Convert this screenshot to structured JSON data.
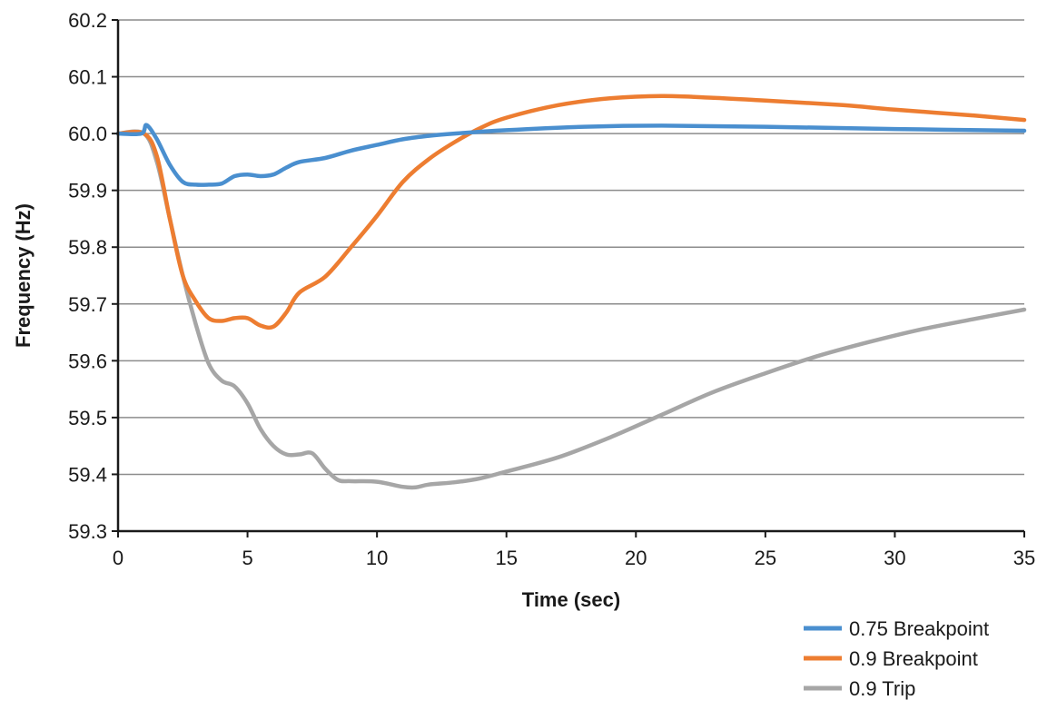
{
  "chart_data": {
    "type": "line",
    "xlabel": "Time (sec)",
    "ylabel": "Frequency (Hz)",
    "xlim": [
      0,
      35
    ],
    "ylim": [
      59.3,
      60.2
    ],
    "x_ticks": [
      "0",
      "5",
      "10",
      "15",
      "20",
      "25",
      "30",
      "35"
    ],
    "y_ticks": [
      "59.3",
      "59.4",
      "59.5",
      "59.6",
      "59.7",
      "59.8",
      "59.9",
      "60.0",
      "60.1",
      "60.2"
    ],
    "grid": "horizontal",
    "legend_position": "bottom-right",
    "series": [
      {
        "name": "0.75 Breakpoint",
        "color": "#4a8fcf",
        "points": [
          [
            0,
            60.0
          ],
          [
            0.9,
            60.0
          ],
          [
            1.1,
            60.015
          ],
          [
            1.5,
            59.99
          ],
          [
            2.0,
            59.945
          ],
          [
            2.5,
            59.915
          ],
          [
            3.0,
            59.91
          ],
          [
            3.5,
            59.91
          ],
          [
            4.0,
            59.912
          ],
          [
            4.5,
            59.925
          ],
          [
            5.0,
            59.928
          ],
          [
            5.5,
            59.925
          ],
          [
            6.0,
            59.928
          ],
          [
            6.5,
            59.94
          ],
          [
            7.0,
            59.95
          ],
          [
            8.0,
            59.957
          ],
          [
            9.0,
            59.97
          ],
          [
            10.0,
            59.98
          ],
          [
            11.0,
            59.99
          ],
          [
            12.0,
            59.996
          ],
          [
            13.0,
            60.0
          ],
          [
            15.0,
            60.006
          ],
          [
            18.0,
            60.012
          ],
          [
            21.0,
            60.014
          ],
          [
            25.0,
            60.012
          ],
          [
            30.0,
            60.008
          ],
          [
            35.0,
            60.005
          ]
        ]
      },
      {
        "name": "0.9 Breakpoint",
        "color": "#ed7d31",
        "points": [
          [
            0,
            60.0
          ],
          [
            1.0,
            60.0
          ],
          [
            1.5,
            59.96
          ],
          [
            2.0,
            59.85
          ],
          [
            2.5,
            59.75
          ],
          [
            3.0,
            59.705
          ],
          [
            3.5,
            59.675
          ],
          [
            4.0,
            59.67
          ],
          [
            4.5,
            59.675
          ],
          [
            5.0,
            59.675
          ],
          [
            5.5,
            59.662
          ],
          [
            6.0,
            59.66
          ],
          [
            6.5,
            59.685
          ],
          [
            7.0,
            59.72
          ],
          [
            8.0,
            59.748
          ],
          [
            9.0,
            59.8
          ],
          [
            10.0,
            59.855
          ],
          [
            11.0,
            59.915
          ],
          [
            12.0,
            59.955
          ],
          [
            13.0,
            59.985
          ],
          [
            14.0,
            60.01
          ],
          [
            15.0,
            60.028
          ],
          [
            17.0,
            60.05
          ],
          [
            19.0,
            60.062
          ],
          [
            21.0,
            60.066
          ],
          [
            23.0,
            60.063
          ],
          [
            25.0,
            60.058
          ],
          [
            28.0,
            60.05
          ],
          [
            30.0,
            60.042
          ],
          [
            33.0,
            60.032
          ],
          [
            35.0,
            60.024
          ]
        ]
      },
      {
        "name": "0.9 Trip",
        "color": "#a6a6a6",
        "points": [
          [
            0,
            60.0
          ],
          [
            1.0,
            60.0
          ],
          [
            1.5,
            59.95
          ],
          [
            2.0,
            59.85
          ],
          [
            2.5,
            59.75
          ],
          [
            3.0,
            59.665
          ],
          [
            3.5,
            59.595
          ],
          [
            4.0,
            59.565
          ],
          [
            4.5,
            59.555
          ],
          [
            5.0,
            59.525
          ],
          [
            5.5,
            59.48
          ],
          [
            6.0,
            59.45
          ],
          [
            6.5,
            59.435
          ],
          [
            7.0,
            59.435
          ],
          [
            7.5,
            59.437
          ],
          [
            8.0,
            59.41
          ],
          [
            8.5,
            59.39
          ],
          [
            9.0,
            59.388
          ],
          [
            10.0,
            59.387
          ],
          [
            11.0,
            59.378
          ],
          [
            11.5,
            59.377
          ],
          [
            12.0,
            59.382
          ],
          [
            13.0,
            59.386
          ],
          [
            14.0,
            59.393
          ],
          [
            15.0,
            59.405
          ],
          [
            17.0,
            59.43
          ],
          [
            19.0,
            59.465
          ],
          [
            21.0,
            59.505
          ],
          [
            23.0,
            59.545
          ],
          [
            25.0,
            59.578
          ],
          [
            27.0,
            59.608
          ],
          [
            29.0,
            59.633
          ],
          [
            31.0,
            59.655
          ],
          [
            33.0,
            59.673
          ],
          [
            35.0,
            59.69
          ]
        ]
      }
    ]
  }
}
